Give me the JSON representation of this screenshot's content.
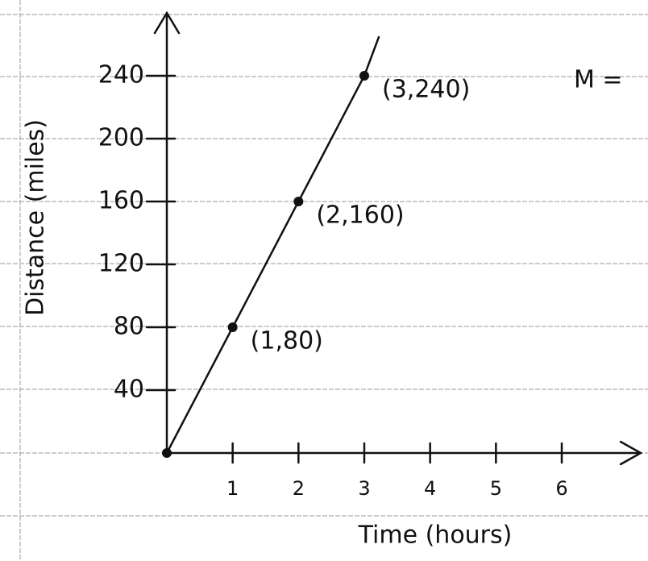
{
  "chart_data": {
    "type": "line",
    "xlabel": "Time (hours)",
    "ylabel": "Distance (miles)",
    "x": [
      0,
      1,
      2,
      3
    ],
    "values": [
      0,
      80,
      160,
      240
    ],
    "color": "#111111",
    "xlim": [
      0,
      7.2
    ],
    "xticks": [
      1,
      2,
      3,
      4,
      5,
      6
    ],
    "ylim": [
      0,
      280
    ],
    "yticks": [
      40,
      80,
      120,
      160,
      200,
      240
    ],
    "annotations": [
      "(1,80)",
      "(2,160)",
      "(3,240)"
    ],
    "side_note": "M ="
  }
}
